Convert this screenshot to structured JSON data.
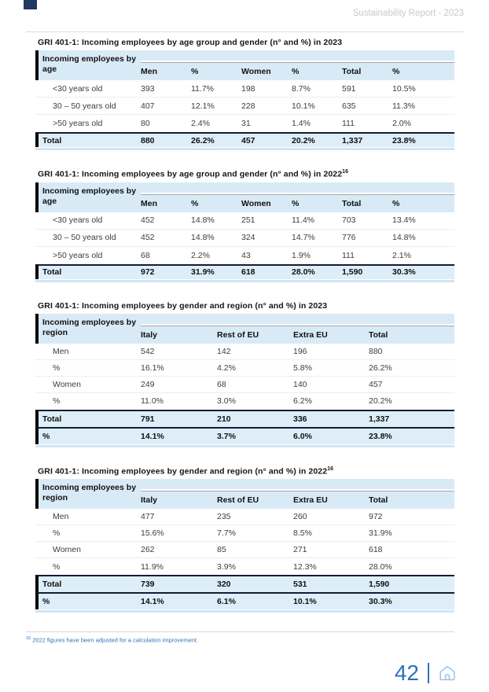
{
  "header": {
    "report_title": "Sustainability Report - 2023"
  },
  "colors": {
    "accent_blue": "#2b72b8",
    "footnote_blue": "#2e75b6",
    "table_header_bg": "#d9eaf7",
    "total_row_bg": "#ddeef9",
    "dark_rule": "#121d33",
    "corner_tab": "#1f3864",
    "muted_header_text": "#c9c9c9",
    "home_icon_blue": "#9cc3e6"
  },
  "tables": [
    {
      "title": "GRI 401-1: Incoming employees by age group and gender (n° and %) in 2023",
      "title_sup": "",
      "row_header": "Incoming employees by age",
      "layout": "age",
      "columns": [
        "Men",
        "%",
        "Women",
        "%",
        "Total",
        "%"
      ],
      "rows": [
        {
          "type": "data",
          "label": "<30 years old",
          "values": [
            "393",
            "11.7%",
            "198",
            "8.7%",
            "591",
            "10.5%"
          ]
        },
        {
          "type": "data",
          "label": "30 – 50 years old",
          "values": [
            "407",
            "12.1%",
            "228",
            "10.1%",
            "635",
            "11.3%"
          ]
        },
        {
          "type": "data",
          "label": ">50 years old",
          "values": [
            "80",
            "2.4%",
            "31",
            "1.4%",
            "111",
            "2.0%"
          ]
        },
        {
          "type": "total",
          "label": "Total",
          "values": [
            "880",
            "26.2%",
            "457",
            "20.2%",
            "1,337",
            "23.8%"
          ]
        }
      ]
    },
    {
      "title": "GRI 401-1: Incoming employees by age group and gender (n° and %) in 2022",
      "title_sup": "16",
      "row_header": "Incoming employees by age",
      "layout": "age",
      "columns": [
        "Men",
        "%",
        "Women",
        "%",
        "Total",
        "%"
      ],
      "rows": [
        {
          "type": "data",
          "label": "<30 years old",
          "values": [
            "452",
            "14.8%",
            "251",
            "11.4%",
            "703",
            "13.4%"
          ]
        },
        {
          "type": "data",
          "label": "30 – 50 years old",
          "values": [
            "452",
            "14.8%",
            "324",
            "14.7%",
            "776",
            "14.8%"
          ]
        },
        {
          "type": "data",
          "label": ">50 years old",
          "values": [
            "68",
            "2.2%",
            "43",
            "1.9%",
            "111",
            "2.1%"
          ]
        },
        {
          "type": "total",
          "label": "Total",
          "values": [
            "972",
            "31.9%",
            "618",
            "28.0%",
            "1,590",
            "30.3%"
          ]
        }
      ]
    },
    {
      "title": "GRI 401-1: Incoming employees by gender and region (n° and %) in 2023",
      "title_sup": "",
      "row_header": "Incoming employees by region",
      "layout": "region",
      "columns": [
        "Italy",
        "Rest of EU",
        "Extra EU",
        "Total"
      ],
      "rows": [
        {
          "type": "data",
          "label": "Men",
          "values": [
            "542",
            "142",
            "196",
            "880"
          ]
        },
        {
          "type": "data",
          "label": "%",
          "values": [
            "16.1%",
            "4.2%",
            "5.8%",
            "26.2%"
          ]
        },
        {
          "type": "data",
          "label": "Women",
          "values": [
            "249",
            "68",
            "140",
            "457"
          ]
        },
        {
          "type": "data",
          "label": "%",
          "values": [
            "11.0%",
            "3.0%",
            "6.2%",
            "20.2%"
          ]
        },
        {
          "type": "total",
          "label": "Total",
          "values": [
            "791",
            "210",
            "336",
            "1,337"
          ]
        },
        {
          "type": "total",
          "label": "%",
          "values": [
            "14.1%",
            "3.7%",
            "6.0%",
            "23.8%"
          ]
        }
      ]
    },
    {
      "title": "GRI 401-1: Incoming employees by gender and region (n° and %) in 2022",
      "title_sup": "16",
      "row_header": "Incoming employees by region",
      "layout": "region",
      "columns": [
        "Italy",
        "Rest of EU",
        "Extra EU",
        "Total"
      ],
      "rows": [
        {
          "type": "data",
          "label": "Men",
          "values": [
            "477",
            "235",
            "260",
            "972"
          ]
        },
        {
          "type": "data",
          "label": "%",
          "values": [
            "15.6%",
            "7.7%",
            "8.5%",
            "31.9%"
          ]
        },
        {
          "type": "data",
          "label": "Women",
          "values": [
            "262",
            "85",
            "271",
            "618"
          ]
        },
        {
          "type": "data",
          "label": "%",
          "values": [
            "11.9%",
            "3.9%",
            "12.3%",
            "28.0%"
          ]
        },
        {
          "type": "total",
          "label": "Total",
          "values": [
            "739",
            "320",
            "531",
            "1,590"
          ]
        },
        {
          "type": "total",
          "label": "%",
          "values": [
            "14.1%",
            "6.1%",
            "10.1%",
            "30.3%"
          ]
        }
      ]
    }
  ],
  "footnote": {
    "sup": "16",
    "text": "2022 figures have been adjusted for a calculation improvement."
  },
  "footer": {
    "page_number": "42",
    "home_icon": "home-icon"
  }
}
